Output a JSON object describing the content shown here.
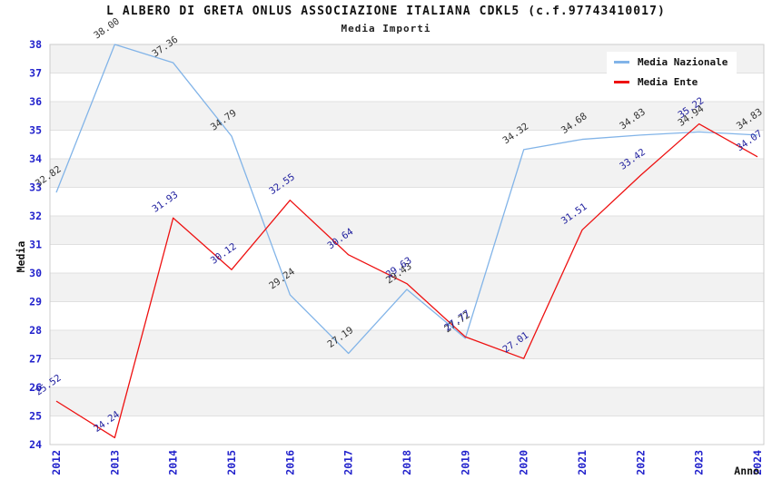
{
  "header": {
    "title": "L ALBERO DI GRETA ONLUS ASSOCIAZIONE ITALIANA CDKL5 (c.f.97743410017)",
    "subtitle": "Media Importi"
  },
  "legend": {
    "position": "top-right",
    "items": [
      {
        "label": "Media Nazionale",
        "color": "#82b4e8"
      },
      {
        "label": "Media Ente",
        "color": "#ee1111"
      }
    ]
  },
  "chart_data": {
    "type": "line",
    "title": "L ALBERO DI GRETA ONLUS ASSOCIAZIONE ITALIANA CDKL5 (c.f.97743410017)",
    "subtitle": "Media Importi",
    "x": [
      2012,
      2013,
      2014,
      2015,
      2016,
      2017,
      2018,
      2019,
      2020,
      2021,
      2022,
      2023,
      2024
    ],
    "xlabel": "Anno",
    "ylabel": "Media",
    "ylim": [
      24,
      38
    ],
    "y_tick_step": 1,
    "grid": "horizontal-bands-alternating",
    "band_color": "#f2f2f2",
    "gridline_color": "#e0e0e0",
    "border_color": "#cccccc",
    "axis_tick_color": "#2222cc",
    "legend_position": "top-right",
    "series": [
      {
        "name": "Media Nazionale",
        "color": "#82b4e8",
        "label_color": "#333333",
        "values": [
          32.82,
          38.0,
          37.36,
          34.79,
          29.24,
          27.19,
          29.43,
          27.72,
          34.32,
          34.68,
          34.83,
          34.94,
          34.83
        ]
      },
      {
        "name": "Media Ente",
        "color": "#ee1111",
        "label_color": "#1f1f9e",
        "values": [
          25.52,
          24.24,
          31.93,
          30.12,
          32.55,
          30.64,
          29.63,
          27.77,
          27.01,
          31.51,
          33.42,
          35.22,
          34.07
        ]
      }
    ]
  }
}
